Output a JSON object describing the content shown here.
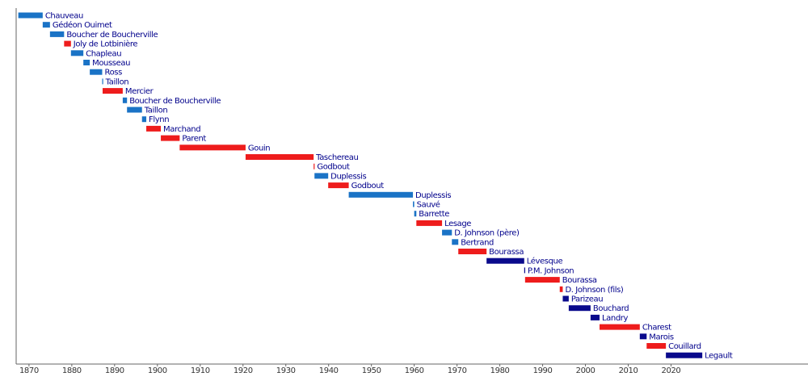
{
  "chart_data": {
    "type": "timeline",
    "xlim": [
      1867,
      2052
    ],
    "xticks": [
      1870,
      1880,
      1890,
      1900,
      1910,
      1920,
      1930,
      1940,
      1950,
      1960,
      1970,
      1980,
      1990,
      2000,
      2010,
      2020
    ],
    "bars": [
      {
        "name": "Chauveau",
        "start": 1867.5,
        "end": 1873.2,
        "color": "#1a73c6"
      },
      {
        "name": "Gédéon Ouimet",
        "start": 1873.2,
        "end": 1874.9,
        "color": "#1a73c6"
      },
      {
        "name": "Boucher de Boucherville",
        "start": 1874.9,
        "end": 1878.2,
        "color": "#1a73c6"
      },
      {
        "name": "Joly de Lotbinière",
        "start": 1878.2,
        "end": 1879.8,
        "color": "#ee1c1c"
      },
      {
        "name": "Chapleau",
        "start": 1879.8,
        "end": 1882.7,
        "color": "#1a73c6"
      },
      {
        "name": "Mousseau",
        "start": 1882.7,
        "end": 1884.2,
        "color": "#1a73c6"
      },
      {
        "name": "Ross",
        "start": 1884.2,
        "end": 1887.1,
        "color": "#1a73c6"
      },
      {
        "name": "Taillon",
        "start": 1887.1,
        "end": 1887.2,
        "color": "#1a73c6"
      },
      {
        "name": "Mercier",
        "start": 1887.2,
        "end": 1891.9,
        "color": "#ee1c1c"
      },
      {
        "name": "Boucher de Boucherville",
        "start": 1891.9,
        "end": 1892.9,
        "color": "#1a73c6"
      },
      {
        "name": "Taillon",
        "start": 1892.9,
        "end": 1896.4,
        "color": "#1a73c6"
      },
      {
        "name": "Flynn",
        "start": 1896.4,
        "end": 1897.4,
        "color": "#1a73c6"
      },
      {
        "name": "Marchand",
        "start": 1897.4,
        "end": 1900.8,
        "color": "#ee1c1c"
      },
      {
        "name": "Parent",
        "start": 1900.8,
        "end": 1905.2,
        "color": "#ee1c1c"
      },
      {
        "name": "Gouin",
        "start": 1905.2,
        "end": 1920.6,
        "color": "#ee1c1c"
      },
      {
        "name": "Taschereau",
        "start": 1920.6,
        "end": 1936.5,
        "color": "#ee1c1c"
      },
      {
        "name": "Godbout",
        "start": 1936.5,
        "end": 1936.7,
        "color": "#ee1c1c"
      },
      {
        "name": "Duplessis",
        "start": 1936.7,
        "end": 1939.9,
        "color": "#1a73c6"
      },
      {
        "name": "Godbout",
        "start": 1939.9,
        "end": 1944.7,
        "color": "#ee1c1c"
      },
      {
        "name": "Duplessis",
        "start": 1944.7,
        "end": 1959.7,
        "color": "#1a73c6"
      },
      {
        "name": "Sauvé",
        "start": 1959.7,
        "end": 1960.0,
        "color": "#1a73c6"
      },
      {
        "name": "Barrette",
        "start": 1960.0,
        "end": 1960.5,
        "color": "#1a73c6"
      },
      {
        "name": "Lesage",
        "start": 1960.5,
        "end": 1966.5,
        "color": "#ee1c1c"
      },
      {
        "name": "D. Johnson (père)",
        "start": 1966.5,
        "end": 1968.8,
        "color": "#1a73c6"
      },
      {
        "name": "Bertrand",
        "start": 1968.8,
        "end": 1970.3,
        "color": "#1a73c6"
      },
      {
        "name": "Bourassa",
        "start": 1970.3,
        "end": 1976.9,
        "color": "#ee1c1c"
      },
      {
        "name": "Lévesque",
        "start": 1976.9,
        "end": 1985.7,
        "color": "#0a0a8c"
      },
      {
        "name": "P.M. Johnson",
        "start": 1985.7,
        "end": 1985.9,
        "color": "#0a0a8c"
      },
      {
        "name": "Bourassa",
        "start": 1985.9,
        "end": 1994.0,
        "color": "#ee1c1c"
      },
      {
        "name": "D. Johnson (fils)",
        "start": 1994.0,
        "end": 1994.7,
        "color": "#ee1c1c"
      },
      {
        "name": "Parizeau",
        "start": 1994.7,
        "end": 1996.1,
        "color": "#0a0a8c"
      },
      {
        "name": "Bouchard",
        "start": 1996.1,
        "end": 2001.2,
        "color": "#0a0a8c"
      },
      {
        "name": "Landry",
        "start": 2001.2,
        "end": 2003.3,
        "color": "#0a0a8c"
      },
      {
        "name": "Charest",
        "start": 2003.3,
        "end": 2012.7,
        "color": "#ee1c1c"
      },
      {
        "name": "Marois",
        "start": 2012.7,
        "end": 2014.3,
        "color": "#0a0a8c"
      },
      {
        "name": "Couillard",
        "start": 2014.3,
        "end": 2018.8,
        "color": "#ee1c1c"
      },
      {
        "name": "Legault",
        "start": 2018.8,
        "end": 2027.3,
        "color": "#0a0a8c"
      }
    ]
  }
}
